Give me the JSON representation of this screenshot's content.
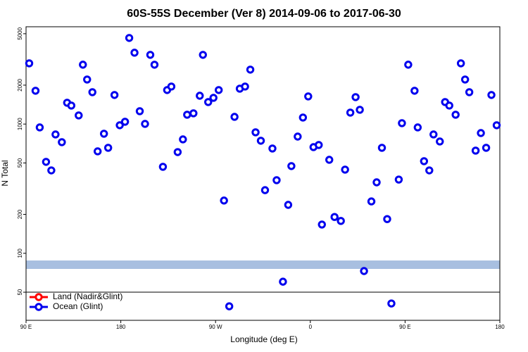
{
  "chart_data": {
    "type": "scatter",
    "title": "60S-55S December (Ver 8)   2014-09-06 to 2017-06-30",
    "x_label": "Longitude (deg E)",
    "y_label": "N Total",
    "xlim": [
      90,
      540
    ],
    "xticks": [
      {
        "value": 90,
        "label": "90 E"
      },
      180,
      {
        "value": 270,
        "label": "90 W"
      },
      {
        "value": 360,
        "label": "0"
      },
      {
        "value": 450,
        "label": "90 E"
      },
      {
        "value": 540,
        "label": "180"
      }
    ],
    "ylim": [
      30.3,
      5660
    ],
    "y_log": true,
    "yticks": [
      50,
      100,
      200,
      500,
      1000,
      2000,
      5000
    ],
    "series": [
      {
        "name": "Land (Nadir&Glint)",
        "color": "#ff0000",
        "x": [],
        "values": []
      },
      {
        "name": "Ocean (Glint)",
        "color": "#0000ee",
        "x": [
          93,
          99,
          103,
          109,
          114,
          118,
          124,
          129,
          133,
          140,
          144,
          148,
          153,
          158,
          164,
          168,
          174,
          179,
          184,
          188,
          193,
          198,
          203,
          208,
          212,
          220,
          224,
          228,
          234,
          239,
          243,
          249,
          255,
          258,
          263,
          268,
          273,
          278,
          283,
          288,
          293,
          298,
          303,
          308,
          313,
          317,
          324,
          328,
          334,
          339,
          342,
          348,
          353,
          358,
          363,
          368,
          371,
          378,
          383,
          389,
          393,
          398,
          403,
          407,
          411,
          418,
          423,
          428,
          433,
          437,
          444,
          447,
          453,
          459,
          462,
          468,
          473,
          477,
          483,
          488,
          492,
          498,
          503,
          507,
          511,
          517,
          522,
          527,
          532,
          537
        ],
        "values": [
          2950,
          1810,
          942,
          510,
          438,
          831,
          724,
          1462,
          1390,
          1166,
          2880,
          2212,
          1765,
          615,
          842,
          655,
          1679,
          979,
          1042,
          4637,
          3565,
          1258,
          1003,
          3432,
          2879,
          467,
          1833,
          1950,
          607,
          761,
          1181,
          1211,
          1656,
          3432,
          1480,
          1596,
          1833,
          256,
          38.9,
          1137,
          1878,
          1950,
          2637,
          863,
          743,
          308,
          647,
          368,
          60.3,
          237,
          473,
          800,
          1123,
          1637,
          663,
          689,
          167,
          529,
          191,
          178,
          444,
          1226,
          1616,
          1289,
          72.9,
          252,
          354,
          655,
          184,
          40.9,
          372,
          1016,
          2880,
          1810,
          942,
          516,
          438,
          831,
          733,
          1480,
          1390,
          1181,
          2950,
          2212,
          1765,
          623,
          852,
          655,
          1679,
          979
        ]
      }
    ],
    "legend": "bottom-left"
  }
}
